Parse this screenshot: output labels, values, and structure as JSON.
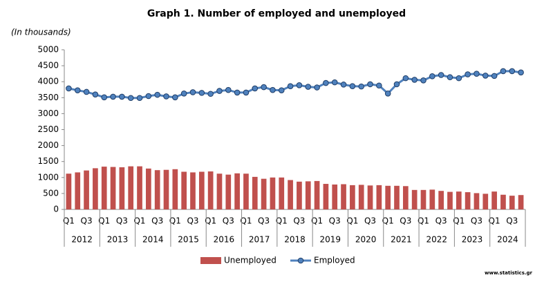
{
  "chart_data": {
    "type": "combo",
    "title": "Graph 1. Number of employed and unemployed",
    "subtitle": "(In thousands)",
    "source": "www.statistics.gr",
    "categories": [
      "Q1",
      null,
      "Q3",
      null,
      "Q1",
      null,
      "Q3",
      null,
      "Q1",
      null,
      "Q3",
      null,
      "Q1",
      null,
      "Q3",
      null,
      "Q1",
      null,
      "Q3",
      null,
      "Q1",
      null,
      "Q3",
      null,
      "Q1",
      null,
      "Q3",
      null,
      "Q1",
      null,
      "Q3",
      null,
      "Q1",
      null,
      "Q3",
      null,
      "Q1",
      null,
      "Q3",
      null,
      "Q1",
      null,
      "Q3",
      null,
      "Q1",
      null,
      "Q3",
      null,
      "Q1",
      null,
      "Q3",
      null
    ],
    "year_groups": [
      "2012",
      "2013",
      "2014",
      "2015",
      "2016",
      "2017",
      "2018",
      "2019",
      "2020",
      "2021",
      "2022",
      "2023",
      "2024"
    ],
    "series": [
      {
        "name": "Unemployed",
        "type": "bar",
        "color": "#c0504d",
        "values": [
          1120,
          1160,
          1220,
          1290,
          1340,
          1330,
          1320,
          1350,
          1350,
          1280,
          1230,
          1240,
          1260,
          1180,
          1160,
          1180,
          1190,
          1120,
          1090,
          1130,
          1120,
          1020,
          960,
          1000,
          1000,
          920,
          870,
          880,
          890,
          800,
          780,
          790,
          760,
          770,
          750,
          760,
          740,
          740,
          730,
          610,
          610,
          620,
          580,
          550,
          560,
          540,
          510,
          490,
          560,
          460,
          430,
          450
        ]
      },
      {
        "name": "Employed",
        "type": "line",
        "color": "#4f81bd",
        "values": [
          3790,
          3730,
          3680,
          3600,
          3510,
          3530,
          3530,
          3490,
          3490,
          3550,
          3590,
          3540,
          3510,
          3630,
          3670,
          3650,
          3620,
          3710,
          3740,
          3660,
          3660,
          3790,
          3830,
          3740,
          3730,
          3860,
          3890,
          3840,
          3820,
          3960,
          3980,
          3910,
          3860,
          3850,
          3920,
          3880,
          3630,
          3920,
          4110,
          4060,
          4040,
          4170,
          4210,
          4140,
          4110,
          4230,
          4250,
          4190,
          4180,
          4330,
          4330,
          4290
        ]
      }
    ],
    "ylim": [
      0,
      5000
    ],
    "yticks": [
      0,
      500,
      1000,
      1500,
      2000,
      2500,
      3000,
      3500,
      4000,
      4500,
      5000
    ],
    "legend": "bottom"
  }
}
